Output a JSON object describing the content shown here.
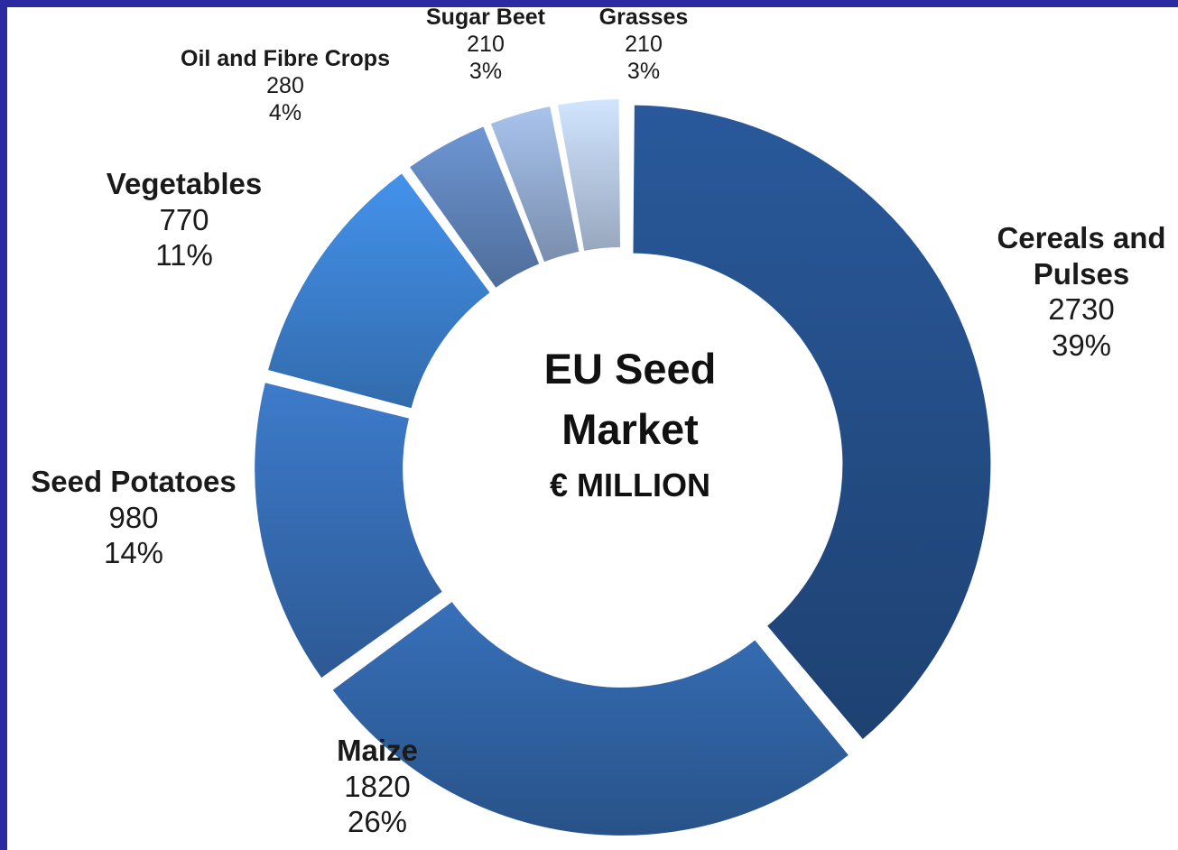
{
  "chart_data": {
    "type": "pie",
    "title": "EU Seed Market",
    "subtitle": "€ MILLION",
    "slices": [
      {
        "label": "Cereals and Pulses",
        "value": 2730,
        "percent": "39%",
        "color": "#234b83"
      },
      {
        "label": "Maize",
        "value": 1820,
        "percent": "26%",
        "color": "#2f5f9e"
      },
      {
        "label": "Seed Potatoes",
        "value": 980,
        "percent": "14%",
        "color": "#3468ac"
      },
      {
        "label": "Vegetables",
        "value": 770,
        "percent": "11%",
        "color": "#3a7cc8"
      },
      {
        "label": "Oil and Fibre Crops",
        "value": 280,
        "percent": "4%",
        "color": "#5c7fb3"
      },
      {
        "label": "Sugar Beet",
        "value": 210,
        "percent": "3%",
        "color": "#8ea5c9"
      },
      {
        "label": "Grasses",
        "value": 210,
        "percent": "3%",
        "color": "#b1c2dd"
      }
    ]
  }
}
